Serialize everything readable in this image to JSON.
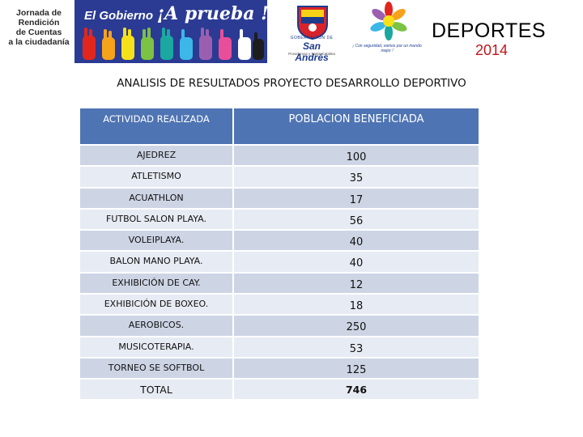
{
  "header": {
    "jornada_lines": [
      "Jornada de",
      "Rendición",
      "de Cuentas",
      "a la ciudadanía"
    ],
    "gobierno_label": "El Gobierno",
    "prueba_label": "¡A prueba !",
    "crest_caption": "GOBERNACIÓN DE",
    "crest_name": "San Andrés",
    "crest_sub": "Providencia y Santa Catalina",
    "slogan": "¡ Con seguridad, vamos por un mundo mejor !",
    "section_title": "DEPORTES",
    "year": "2014",
    "colors": {
      "banner_blue": "#2b3b93",
      "year_red": "#c0151a"
    }
  },
  "report": {
    "title": "ANALISIS DE RESULTADOS PROYECTO DESARROLLO DEPORTIVO"
  },
  "table": {
    "headers": [
      "ACTIVIDAD REALIZADA",
      "POBLACION BENEFICIADA"
    ],
    "rows": [
      {
        "actividad": "AJEDREZ",
        "poblacion": "100"
      },
      {
        "actividad": "ATLETISMO",
        "poblacion": "35"
      },
      {
        "actividad": "ACUATHLON",
        "poblacion": "17"
      },
      {
        "actividad": "FUTBOL SALON PLAYA.",
        "poblacion": "56"
      },
      {
        "actividad": "VOLEIPLAYA.",
        "poblacion": "40"
      },
      {
        "actividad": "BALON MANO PLAYA.",
        "poblacion": "40"
      },
      {
        "actividad": "EXHIBICIÓN DE CAY.",
        "poblacion": "12"
      },
      {
        "actividad": "EXHIBICIÓN DE BOXEO.",
        "poblacion": "18"
      },
      {
        "actividad": "AEROBICOS.",
        "poblacion": "250"
      },
      {
        "actividad": "MUSICOTERAPIA.",
        "poblacion": "53"
      },
      {
        "actividad": "TORNEO SE SOFTBOL",
        "poblacion": "125"
      }
    ],
    "total": {
      "label": "TOTAL",
      "value": "746"
    },
    "colors": {
      "header": "#4e74b3",
      "row_dark": "#cdd5e5",
      "row_light": "#e7ebf3"
    }
  }
}
